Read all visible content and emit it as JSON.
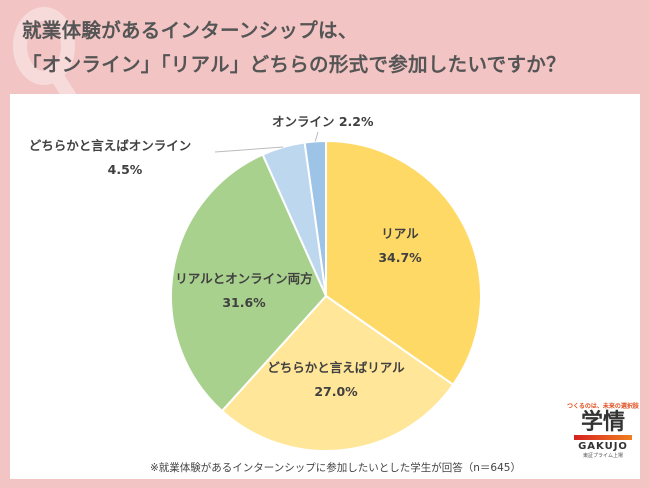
{
  "title": {
    "line1": "就業体験があるインターンシップは、",
    "line2": "「オンライン」「リアル」どちらの形式で参加したいですか？"
  },
  "chart_data": {
    "type": "pie",
    "title": "就業体験があるインターンシップは、「オンライン」「リアル」どちらの形式で参加したいですか？",
    "slices": [
      {
        "label": "リアル",
        "value": 34.7,
        "display": "34.7%",
        "color": "#FFD966"
      },
      {
        "label": "どちらかと言えばリアル",
        "value": 27.0,
        "display": "27.0%",
        "color": "#FFE699"
      },
      {
        "label": "リアルとオンライン両方",
        "value": 31.6,
        "display": "31.6%",
        "color": "#A9D18E"
      },
      {
        "label": "どちらかと言えばオンライン",
        "value": 4.5,
        "display": "4.5%",
        "color": "#BDD7EE"
      },
      {
        "label": "オンライン",
        "value": 2.2,
        "display": "2.2%",
        "color": "#9DC3E6"
      }
    ]
  },
  "note": "※就業体験があるインターンシップに参加したいとした学生が回答（n＝645）",
  "logo": {
    "tagline": "つくるのは、未来の選択肢",
    "name": "学情",
    "en": "GAKUJO",
    "sub": "東証プライム上場"
  }
}
